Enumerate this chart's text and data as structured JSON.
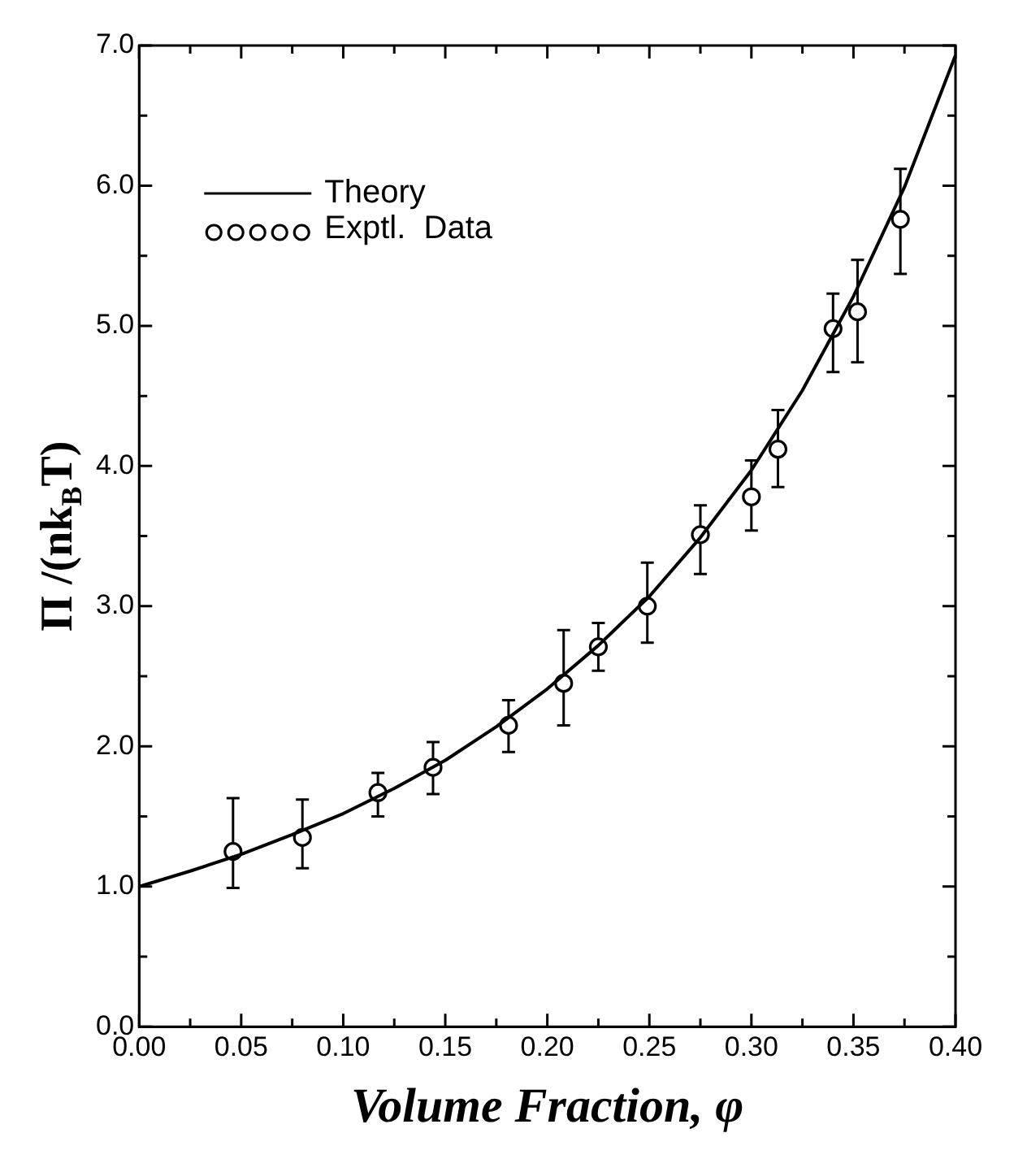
{
  "chart_data": {
    "type": "scatter",
    "xlabel": "Volume Fraction, φ",
    "ylabel": "Π /(nk$_{B}$T)",
    "xlim": [
      0,
      0.4
    ],
    "xticks": [
      {
        "value": 0,
        "label": "0.00"
      },
      {
        "value": 0.025,
        "label": null
      },
      {
        "value": 0.05,
        "label": "0.05"
      },
      {
        "value": 0.075,
        "label": null
      },
      {
        "value": 0.1,
        "label": "0.10"
      },
      {
        "value": 0.125,
        "label": null
      },
      {
        "value": 0.15,
        "label": "0.15"
      },
      {
        "value": 0.175,
        "label": null
      },
      {
        "value": 0.2,
        "label": "0.20"
      },
      {
        "value": 0.225,
        "label": null
      },
      {
        "value": 0.25,
        "label": "0.25"
      },
      {
        "value": 0.275,
        "label": null
      },
      {
        "value": 0.3,
        "label": "0.30"
      },
      {
        "value": 0.325,
        "label": null
      },
      {
        "value": 0.35,
        "label": "0.35"
      },
      {
        "value": 0.375,
        "label": null
      },
      {
        "value": 0.4,
        "label": "0.40"
      }
    ],
    "ylim": [
      0,
      7
    ],
    "yticks": [
      {
        "value": 0,
        "label": "0.0"
      },
      {
        "value": 0.5,
        "label": null
      },
      {
        "value": 1,
        "label": "1.0"
      },
      {
        "value": 1.5,
        "label": null
      },
      {
        "value": 2,
        "label": "2.0"
      },
      {
        "value": 2.5,
        "label": null
      },
      {
        "value": 3,
        "label": "3.0"
      },
      {
        "value": 3.5,
        "label": null
      },
      {
        "value": 4,
        "label": "4.0"
      },
      {
        "value": 4.5,
        "label": null
      },
      {
        "value": 5,
        "label": "5.0"
      },
      {
        "value": 5.5,
        "label": null
      },
      {
        "value": 6,
        "label": "6.0"
      },
      {
        "value": 6.5,
        "label": null
      },
      {
        "value": 7,
        "label": "7.0"
      }
    ],
    "grid": false,
    "legend": "top left",
    "series": [
      {
        "name": "Theory",
        "type": "line",
        "color": "#000000",
        "marker": "none",
        "line_style": "solid",
        "x": [
          0,
          0.025,
          0.05,
          0.075,
          0.1,
          0.125,
          0.15,
          0.175,
          0.2,
          0.225,
          0.25,
          0.275,
          0.3,
          0.325,
          0.35,
          0.375,
          0.4
        ],
        "values": [
          1.0,
          1.11,
          1.23,
          1.37,
          1.52,
          1.7,
          1.9,
          2.14,
          2.41,
          2.72,
          3.07,
          3.49,
          3.97,
          4.54,
          5.21,
          5.99,
          6.93
        ]
      },
      {
        "name": "Exptl.  Data",
        "type": "scatter",
        "color": "#000000",
        "marker": "circle",
        "x": [
          0.046,
          0.08,
          0.117,
          0.144,
          0.181,
          0.208,
          0.225,
          0.249,
          0.275,
          0.3,
          0.313,
          0.34,
          0.352,
          0.373
        ],
        "values": [
          1.25,
          1.35,
          1.67,
          1.85,
          2.15,
          2.45,
          2.71,
          3.0,
          3.51,
          3.78,
          4.12,
          4.98,
          5.1,
          5.76
        ],
        "errors": [
          [
            0.99,
            1.63
          ],
          [
            1.13,
            1.62
          ],
          [
            1.5,
            1.81
          ],
          [
            1.66,
            2.03
          ],
          [
            1.96,
            2.33
          ],
          [
            2.15,
            2.83
          ],
          [
            2.54,
            2.88
          ],
          [
            2.74,
            3.31
          ],
          [
            3.23,
            3.72
          ],
          [
            3.54,
            4.04
          ],
          [
            3.85,
            4.4
          ],
          [
            4.67,
            5.23
          ],
          [
            4.74,
            5.47
          ],
          [
            5.37,
            6.12
          ]
        ]
      }
    ]
  }
}
